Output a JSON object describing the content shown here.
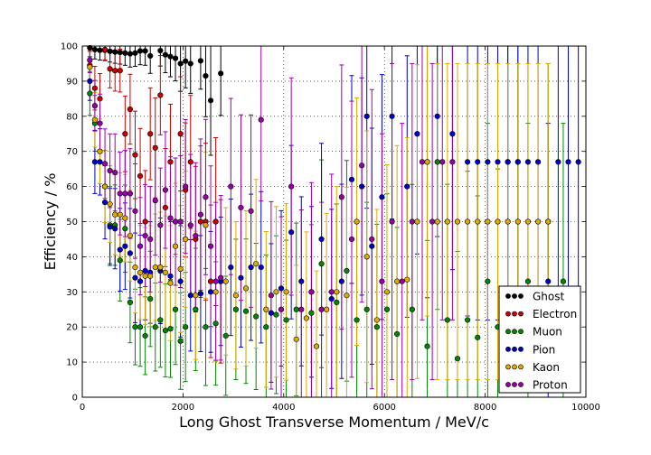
{
  "chart_data": {
    "type": "scatter",
    "title": "",
    "xlabel": "Long Ghost Transverse Momentum / MeV/c",
    "ylabel": "Efficiency / %",
    "xlim": [
      0,
      10000
    ],
    "ylim": [
      0,
      100
    ],
    "xticks": [
      "0",
      "2000",
      "4000",
      "6000",
      "8000",
      "10000"
    ],
    "yticks": [
      "0",
      "10",
      "20",
      "30",
      "40",
      "50",
      "60",
      "70",
      "80",
      "90",
      "100"
    ],
    "grid": true,
    "legend_position": "lower-right",
    "series": [
      {
        "name": "Ghost",
        "color": "#000000",
        "x": [
          150,
          250,
          350,
          450,
          550,
          650,
          750,
          850,
          950,
          1050,
          1150,
          1250,
          1350,
          1550,
          1650,
          1750,
          1850,
          1950,
          2050,
          2150,
          2350,
          2450,
          2550,
          2750
        ],
        "y": [
          99.5,
          99,
          98.8,
          98.8,
          98.5,
          98.3,
          98.2,
          98,
          97.8,
          98,
          98.6,
          98.6,
          97.2,
          98.7,
          97.5,
          97,
          96.5,
          95,
          95.7,
          95,
          95.8,
          91.5,
          84.5,
          92.2
        ]
      },
      {
        "name": "Electron",
        "color": "#cc0000",
        "x": [
          150,
          250,
          350,
          450,
          550,
          650,
          750,
          850,
          950,
          1050,
          1150,
          1250,
          1350,
          1450,
          1550,
          1650,
          1750,
          1850,
          1950,
          2050,
          2150,
          2250,
          2350,
          2450,
          2550,
          2650,
          2750
        ],
        "y": [
          94.5,
          88,
          85,
          99,
          93.5,
          93,
          93,
          75,
          82,
          69,
          63,
          50,
          75,
          71,
          86,
          54,
          67,
          50,
          75,
          59,
          67,
          45,
          50,
          50,
          33,
          50,
          33
        ]
      },
      {
        "name": "Muon",
        "color": "#008800",
        "x": [
          150,
          250,
          350,
          450,
          550,
          650,
          750,
          850,
          950,
          1050,
          1150,
          1250,
          1350,
          1450,
          1550,
          1650,
          1750,
          1850,
          1950,
          2050,
          2250,
          2450,
          2650,
          2850,
          3050,
          3250,
          3450,
          3650,
          3850,
          4050,
          4250,
          4550,
          4750,
          5050,
          5250,
          5450,
          5650,
          5850,
          6050,
          6250,
          6550,
          6850,
          7050,
          7250,
          7450,
          7650,
          7850,
          8050,
          8250,
          8450,
          8650,
          8850,
          9250,
          9550
        ],
        "y": [
          86.5,
          78,
          70,
          60,
          49,
          49,
          39,
          48,
          27,
          20,
          20,
          17.5,
          28,
          20,
          22,
          19,
          19.5,
          25,
          16,
          20,
          25,
          20,
          21,
          17.5,
          25,
          24.5,
          23,
          20,
          23.5,
          22,
          25,
          24,
          38,
          27,
          36,
          22,
          25,
          20,
          25,
          18,
          25,
          14.5,
          67,
          22,
          11,
          22,
          17,
          33,
          20,
          67,
          67,
          33,
          50,
          33
        ]
      },
      {
        "name": "Pion",
        "color": "#0000cc",
        "x": [
          150,
          250,
          350,
          450,
          550,
          650,
          750,
          850,
          950,
          1050,
          1150,
          1250,
          1350,
          1550,
          1750,
          1950,
          2150,
          2350,
          2550,
          2750,
          2950,
          3150,
          3350,
          3550,
          3750,
          3950,
          4150,
          4350,
          4550,
          4750,
          4950,
          5150,
          5350,
          5550,
          5650,
          5750,
          5950,
          6150,
          6450,
          6650,
          6850,
          7050,
          7350,
          7650,
          7850,
          8050,
          8250,
          8450,
          8650,
          8850,
          9050,
          9250,
          9450,
          9650,
          9850
        ],
        "y": [
          90,
          67,
          67,
          55.5,
          48.5,
          48,
          42,
          43,
          41,
          34,
          33,
          36,
          35.5,
          36,
          34.5,
          33,
          29,
          29.5,
          30,
          33,
          37,
          34,
          37,
          37,
          24,
          31,
          47,
          33,
          30,
          45,
          28,
          33,
          62,
          60,
          80,
          43,
          57,
          80,
          60,
          75,
          67,
          80,
          75,
          67,
          67,
          67,
          67,
          67,
          67,
          67,
          67,
          33,
          67,
          67,
          67
        ]
      },
      {
        "name": "Kaon",
        "color": "#ddaa00",
        "x": [
          150,
          250,
          350,
          450,
          550,
          650,
          750,
          850,
          950,
          1050,
          1150,
          1250,
          1350,
          1450,
          1550,
          1650,
          1750,
          1850,
          1950,
          2050,
          2250,
          2450,
          2650,
          2850,
          3050,
          3250,
          3450,
          3650,
          3850,
          4050,
          4250,
          4450,
          4650,
          4850,
          5050,
          5250,
          5450,
          5650,
          5850,
          6050,
          6250,
          6450,
          6650,
          6850,
          7050,
          7250,
          7450,
          7650,
          7850,
          8050,
          8250,
          8450,
          8650,
          8850,
          9050,
          9250
        ],
        "y": [
          94,
          79,
          70,
          60,
          55,
          52,
          52,
          51,
          46,
          37,
          35.5,
          34.5,
          34.5,
          37,
          37,
          35.5,
          32.5,
          43,
          36.5,
          45,
          29,
          49,
          30,
          33,
          29,
          31,
          38,
          25,
          30,
          30,
          16.5,
          22.5,
          14.5,
          25,
          30,
          29,
          50,
          40,
          22,
          30,
          33,
          33.5,
          50,
          67,
          50,
          50,
          50,
          50,
          50,
          50,
          50,
          50,
          50,
          50,
          50,
          50
        ]
      },
      {
        "name": "Proton",
        "color": "#9900aa",
        "x": [
          150,
          250,
          350,
          450,
          550,
          650,
          750,
          850,
          950,
          1050,
          1150,
          1250,
          1350,
          1450,
          1550,
          1650,
          1750,
          1850,
          1950,
          2050,
          2150,
          2250,
          2350,
          2450,
          2550,
          2650,
          2750,
          2950,
          3150,
          3350,
          3550,
          3750,
          3950,
          4150,
          4350,
          4550,
          4750,
          4950,
          5150,
          5350,
          5550,
          5750,
          5950,
          6150,
          6350,
          6550,
          6750,
          6950,
          7150,
          7350
        ],
        "y": [
          96,
          83,
          78,
          66.5,
          64.5,
          64,
          58,
          58,
          58,
          53,
          43,
          46,
          45,
          56,
          49,
          59,
          51,
          50,
          50,
          60,
          49,
          46,
          52,
          57,
          43,
          33,
          34,
          60,
          54,
          53,
          79,
          29,
          25,
          60,
          25,
          30,
          25,
          30,
          57,
          45,
          66,
          45,
          33,
          50,
          33,
          50,
          67,
          50,
          67,
          67
        ]
      }
    ]
  }
}
